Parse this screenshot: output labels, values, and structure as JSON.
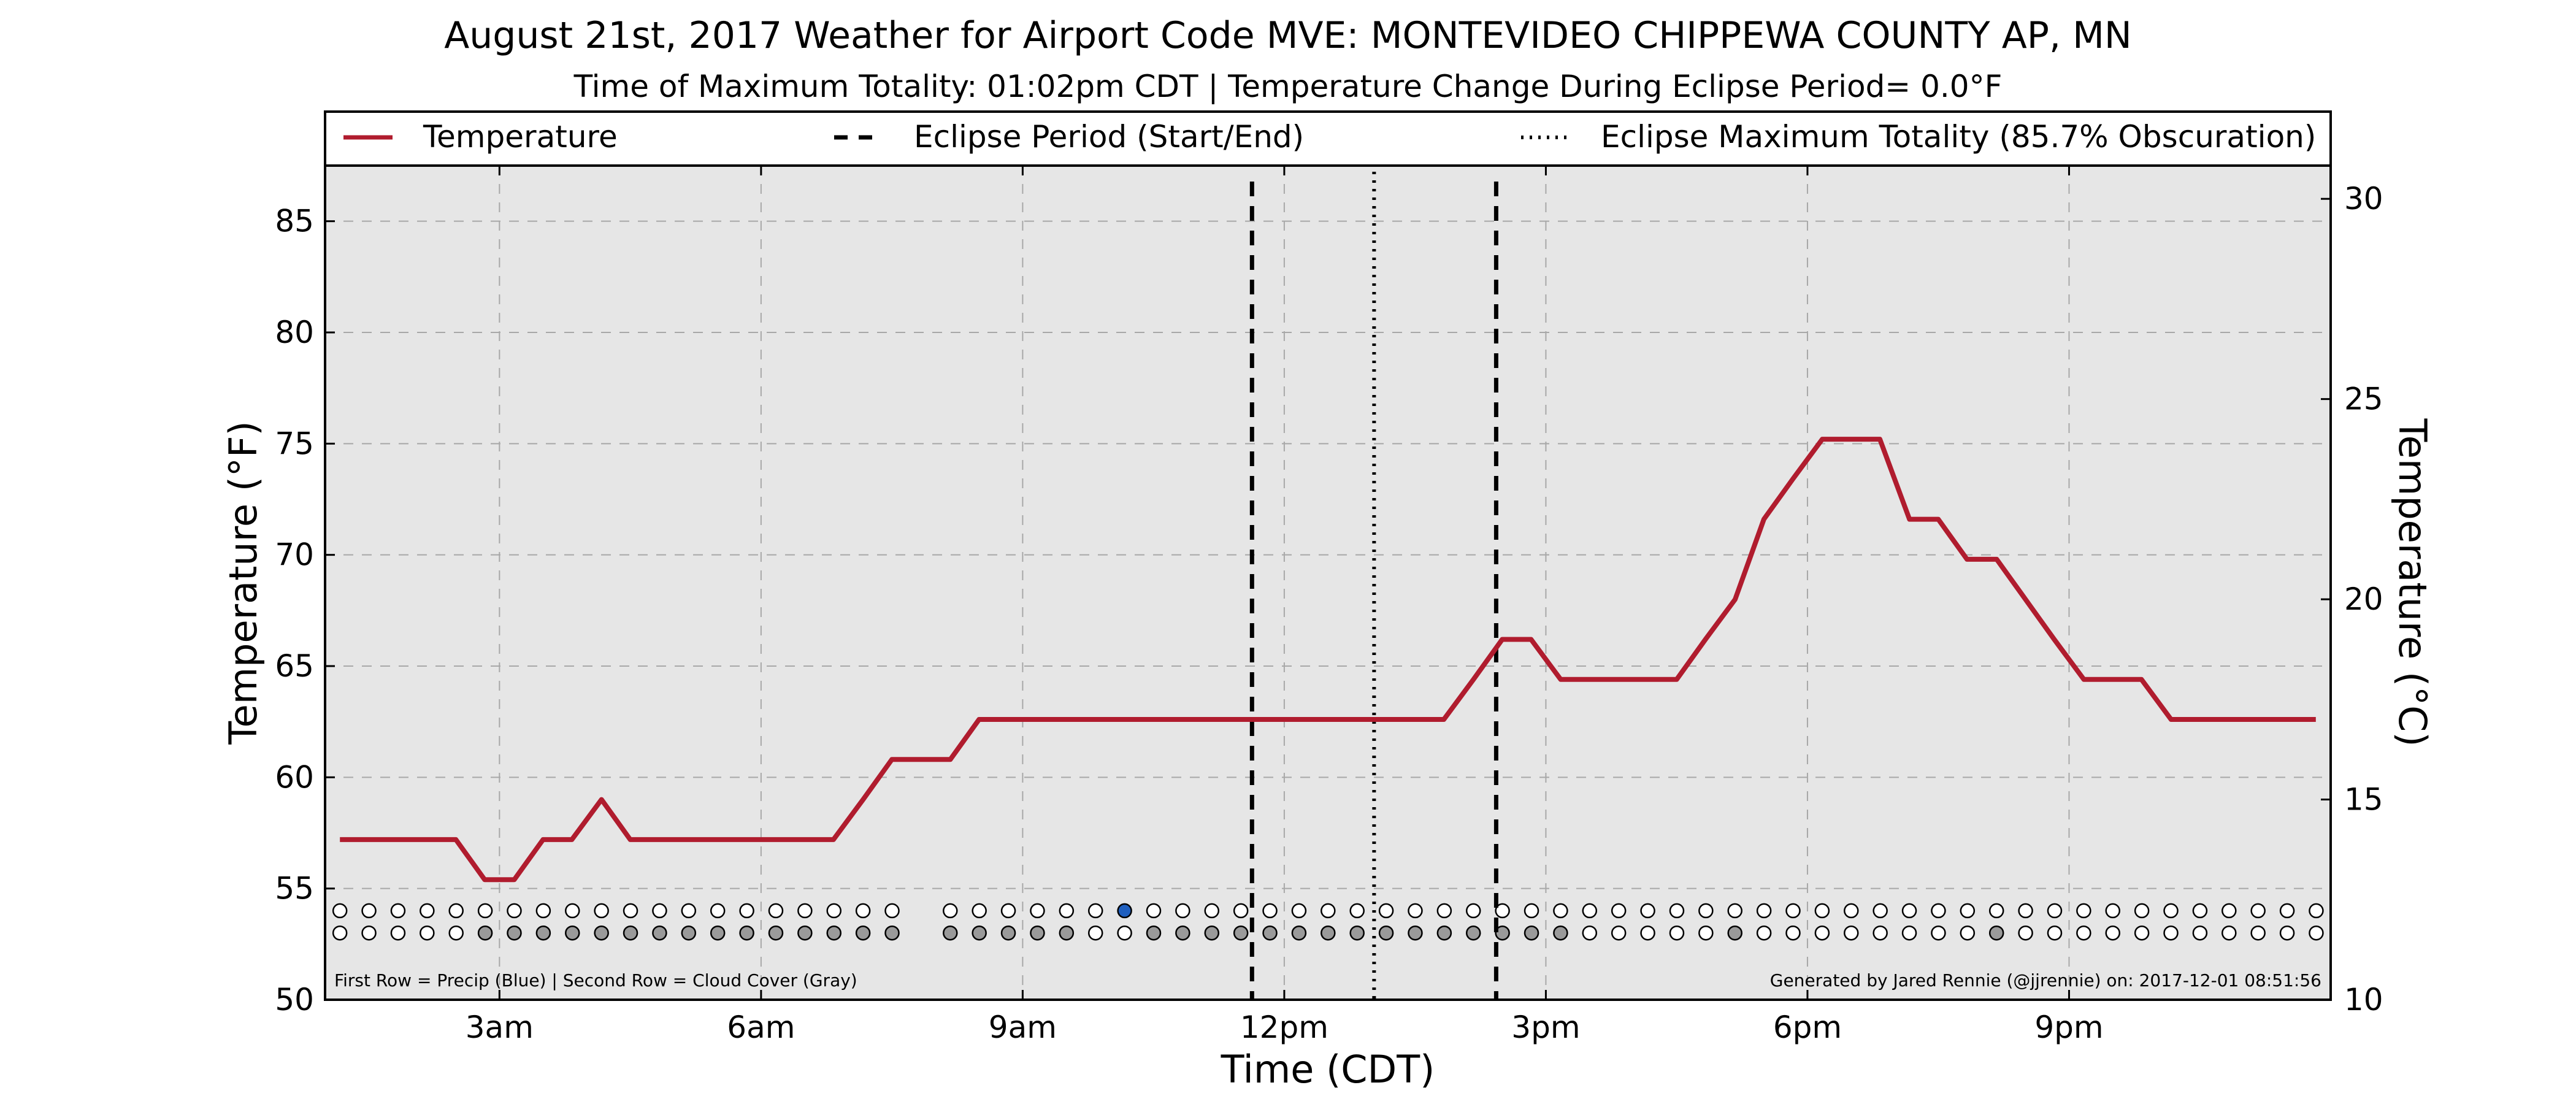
{
  "chart_data": {
    "type": "line",
    "title": "August 21st, 2017 Weather for Airport Code MVE: MONTEVIDEO CHIPPEWA COUNTY AP, MN",
    "subtitle": "Time of Maximum Totality: 01:02pm CDT | Temperature Change During Eclipse Period= 0.0°F",
    "xlabel": "Time (CDT)",
    "ylabel": "Temperature (°F)",
    "ylabel_right": "Temperature (°C)",
    "xlim": [
      1,
      24
    ],
    "ylim": [
      50,
      87.5
    ],
    "ylim_right": [
      10,
      30.83
    ],
    "grid": true,
    "legend_position": "top",
    "x_ticks": [
      {
        "x": 3,
        "label": "3am"
      },
      {
        "x": 6,
        "label": "6am"
      },
      {
        "x": 9,
        "label": "9am"
      },
      {
        "x": 12,
        "label": "12pm"
      },
      {
        "x": 15,
        "label": "3pm"
      },
      {
        "x": 18,
        "label": "6pm"
      },
      {
        "x": 21,
        "label": "9pm"
      }
    ],
    "y_ticks": [
      50,
      55,
      60,
      65,
      70,
      75,
      80,
      85
    ],
    "y_ticks_right": [
      10,
      15,
      20,
      25,
      30
    ],
    "legend": [
      {
        "label": "Temperature",
        "style": "solid",
        "color": "#b01c2e"
      },
      {
        "label": "Eclipse Period (Start/End)",
        "style": "dashed",
        "color": "#000000"
      },
      {
        "label": "Eclipse Maximum Totality (85.7% Obscuration)",
        "style": "dotted",
        "color": "#000000"
      }
    ],
    "series": [
      {
        "name": "Temperature",
        "color": "#b01c2e",
        "x": [
          1.17,
          2.5,
          2.83,
          3.17,
          3.5,
          3.83,
          4.17,
          4.5,
          4.83,
          5.17,
          5.5,
          5.83,
          6.17,
          6.5,
          6.83,
          7.17,
          7.5,
          7.83,
          8.17,
          8.5,
          8.83,
          9.17,
          9.5,
          9.83,
          10.17,
          10.5,
          10.83,
          11.17,
          11.5,
          11.83,
          12.17,
          12.5,
          12.83,
          13.17,
          13.5,
          13.83,
          14.17,
          14.5,
          14.83,
          15.17,
          15.5,
          15.83,
          16.17,
          16.5,
          16.83,
          17.17,
          17.5,
          17.83,
          18.17,
          18.5,
          18.83,
          19.17,
          19.5,
          19.83,
          20.17,
          20.5,
          20.83,
          21.17,
          21.5,
          21.83,
          22.17,
          22.5,
          22.83,
          23.17,
          23.5,
          23.83
        ],
        "y": [
          57.2,
          57.2,
          55.4,
          55.4,
          57.2,
          57.2,
          59,
          57.2,
          57.2,
          57.2,
          57.2,
          57.2,
          57.2,
          57.2,
          57.2,
          59,
          60.8,
          60.8,
          60.8,
          62.6,
          62.6,
          62.6,
          62.6,
          62.6,
          62.6,
          62.6,
          62.6,
          62.6,
          62.6,
          62.6,
          62.6,
          62.6,
          62.6,
          62.6,
          62.6,
          62.6,
          64.4,
          66.2,
          66.2,
          64.4,
          64.4,
          64.4,
          64.4,
          64.4,
          66.2,
          68,
          71.6,
          73.4,
          75.2,
          75.2,
          75.2,
          71.6,
          71.6,
          69.8,
          69.8,
          68,
          66.2,
          64.4,
          64.4,
          64.4,
          62.6,
          62.6,
          62.6,
          62.6,
          62.6,
          62.6
        ]
      }
    ],
    "eclipse_start": 11.63,
    "eclipse_end": 14.43,
    "eclipse_max": 13.03,
    "precip_row": {
      "y": 54,
      "x_start": 1.17,
      "step": 0.3333,
      "count": 68,
      "missing_index": 20,
      "states": "000000000000000000000000000200000000000000000000000000000000000000000"
    },
    "cloud_row": {
      "y": 53,
      "x_start": 1.17,
      "step": 0.3333,
      "count": 68,
      "missing_index": 20,
      "states": "000001111111111111111111110011111111111111100000100000000100000000000"
    },
    "row_colors": {
      "empty": "#ffffff",
      "cloud": "#9a9a9a",
      "precip": "#1f5fbf"
    },
    "note_left": "First Row = Precip (Blue) | Second Row = Cloud Cover (Gray)",
    "note_right": "Generated by Jared Rennie (@jjrennie) on: 2017-12-01 08:51:56",
    "colors": {
      "background": "#e6e6e6",
      "temperature": "#b01c2e",
      "grid": "#a8a8a8"
    }
  }
}
